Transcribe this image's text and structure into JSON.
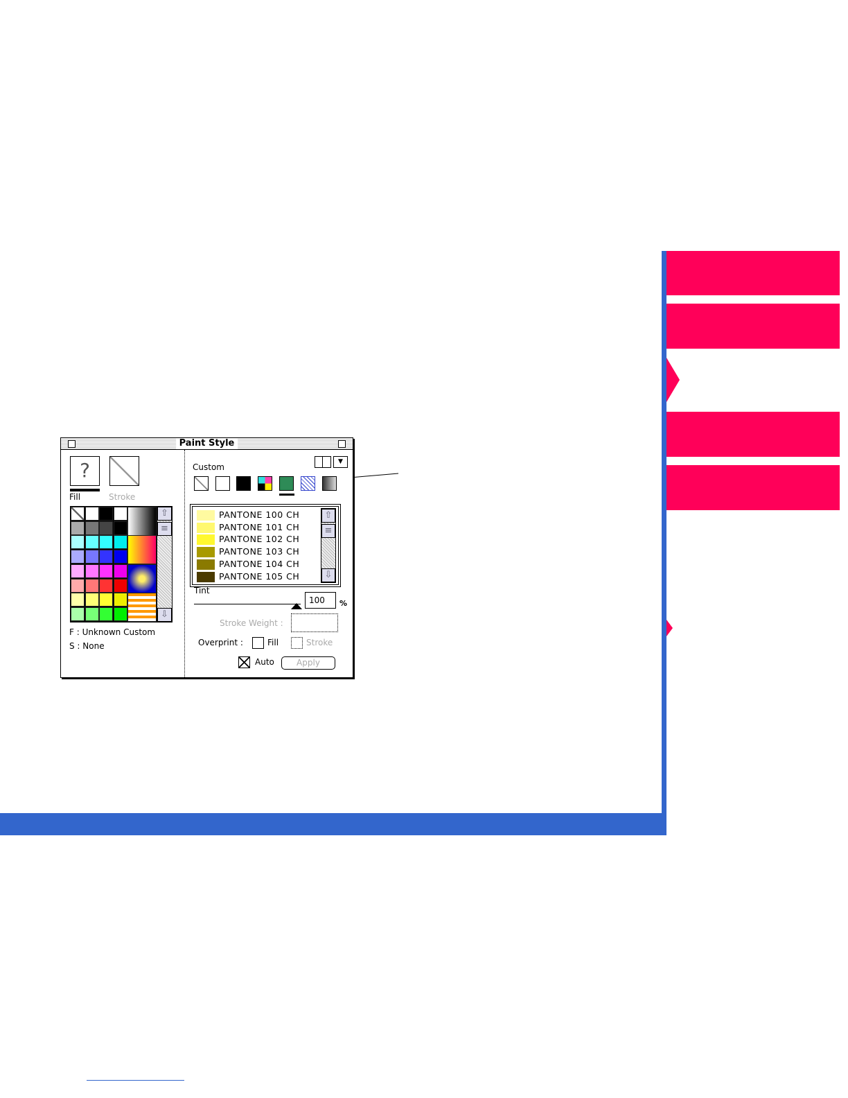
{
  "window": {
    "title": "Paint Style"
  },
  "left": {
    "fill_label": "Fill",
    "stroke_label": "Stroke",
    "fill_symbol": "?",
    "fill_info": "F : Unknown Custom",
    "stroke_info": "S : None"
  },
  "right": {
    "category": "Custom",
    "tint_label": "Tint",
    "tint_value": "100",
    "percent": "%",
    "stroke_weight_label": "Stroke Weight :",
    "overprint_label": "Overprint :",
    "overprint_fill": "Fill",
    "overprint_stroke": "Stroke",
    "auto_label": "Auto",
    "apply_label": "Apply"
  },
  "swatch_list": [
    {
      "name": "PANTONE 100 CH",
      "color": "#fffaa0"
    },
    {
      "name": "PANTONE 101 CH",
      "color": "#fff870"
    },
    {
      "name": "PANTONE 102 CH",
      "color": "#fff830"
    },
    {
      "name": "PANTONE 103 CH",
      "color": "#a89a00"
    },
    {
      "name": "PANTONE 104 CH",
      "color": "#8a7a00"
    },
    {
      "name": "PANTONE 105 CH",
      "color": "#4a3a00"
    }
  ],
  "colors": {
    "accent_pink": "#ff0059",
    "accent_blue": "#3366cc",
    "selected_custom": "#2e8b57"
  }
}
